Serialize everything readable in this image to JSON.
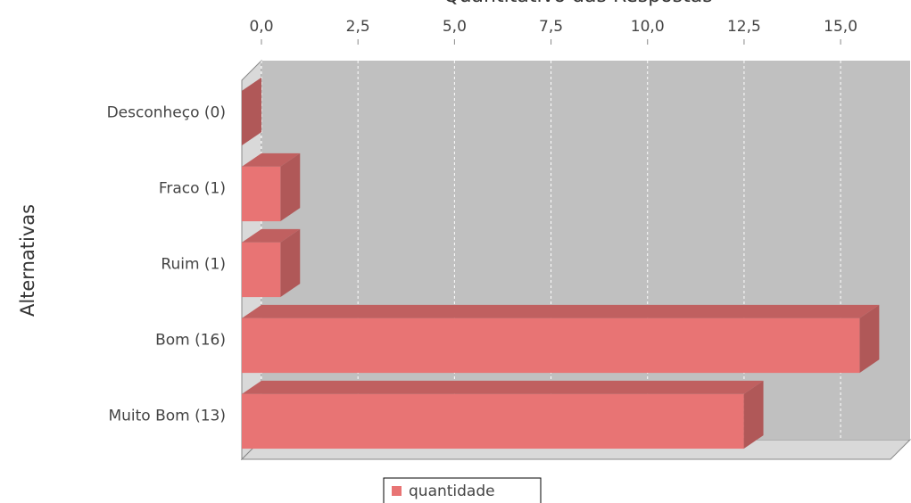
{
  "chart_data": {
    "type": "bar",
    "orientation": "horizontal",
    "title": "Quantitativo das Respostas",
    "y_label": "Alternativas",
    "categories": [
      "Desconheço (0)",
      "Fraco (1)",
      "Ruim (1)",
      "Bom (16)",
      "Muito Bom (13)"
    ],
    "series": [
      {
        "name": "quantidade",
        "color": "#e87474",
        "values": [
          0,
          1,
          1,
          16,
          13
        ]
      }
    ],
    "xlim": [
      0,
      16.8
    ],
    "xticks": [
      {
        "value": 0,
        "label": "0,0"
      },
      {
        "value": 2.5,
        "label": "2,5"
      },
      {
        "value": 5,
        "label": "5,0"
      },
      {
        "value": 7.5,
        "label": "7,5"
      },
      {
        "value": 10,
        "label": "10,0"
      },
      {
        "value": 12.5,
        "label": "12,5"
      },
      {
        "value": 15,
        "label": "15,0"
      }
    ],
    "grid": true,
    "legend": "bottom"
  }
}
